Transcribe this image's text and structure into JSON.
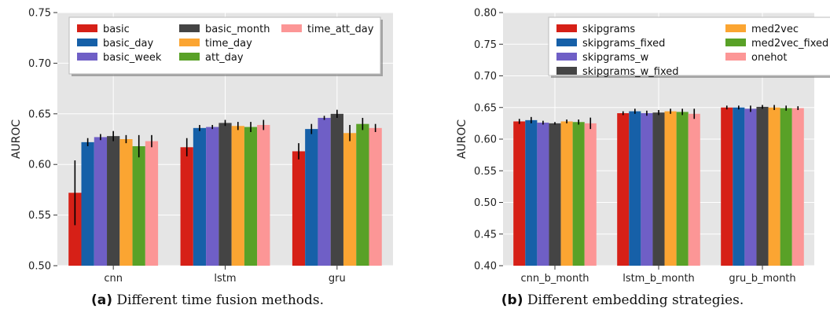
{
  "figure": {
    "caption_a_label": "(a)",
    "caption_a_text": "Different time fusion methods.",
    "caption_b_label": "(b)",
    "caption_b_text": "Different embedding strategies."
  },
  "colors": {
    "plot_bg": "#e5e5e5",
    "grid": "#ffffff"
  },
  "chart_data": [
    {
      "type": "bar",
      "title": "",
      "xlabel": "",
      "ylabel": "AUROC",
      "ylim": [
        0.5,
        0.75
      ],
      "yticks": [
        "0.50",
        "0.55",
        "0.60",
        "0.65",
        "0.70",
        "0.75"
      ],
      "grid": true,
      "legend": "top-left",
      "legend_columns": 3,
      "categories": [
        "cnn",
        "lstm",
        "gru"
      ],
      "series": [
        {
          "name": "basic",
          "color": "#d62017",
          "values": [
            0.572,
            0.617,
            0.613
          ],
          "errors": [
            0.032,
            0.009,
            0.008
          ]
        },
        {
          "name": "basic_day",
          "color": "#1660a8",
          "values": [
            0.622,
            0.636,
            0.635
          ],
          "errors": [
            0.004,
            0.003,
            0.005
          ]
        },
        {
          "name": "basic_week",
          "color": "#6f5fc6",
          "values": [
            0.627,
            0.637,
            0.646
          ],
          "errors": [
            0.003,
            0.002,
            0.002
          ]
        },
        {
          "name": "basic_month",
          "color": "#444444",
          "values": [
            0.628,
            0.641,
            0.65
          ],
          "errors": [
            0.005,
            0.003,
            0.004
          ]
        },
        {
          "name": "time_day",
          "color": "#fba532",
          "values": [
            0.625,
            0.638,
            0.631
          ],
          "errors": [
            0.004,
            0.004,
            0.008
          ]
        },
        {
          "name": "att_day",
          "color": "#59a127",
          "values": [
            0.618,
            0.637,
            0.64
          ],
          "errors": [
            0.011,
            0.005,
            0.006
          ]
        },
        {
          "name": "time_att_day",
          "color": "#fc9696",
          "values": [
            0.623,
            0.639,
            0.636
          ],
          "errors": [
            0.006,
            0.005,
            0.004
          ]
        }
      ]
    },
    {
      "type": "bar",
      "title": "",
      "xlabel": "",
      "ylabel": "AUROC",
      "ylim": [
        0.4,
        0.8
      ],
      "yticks": [
        "0.40",
        "0.45",
        "0.50",
        "0.55",
        "0.60",
        "0.65",
        "0.70",
        "0.75",
        "0.80"
      ],
      "grid": true,
      "legend": "top-center",
      "legend_columns": 2,
      "categories": [
        "cnn_b_month",
        "lstm_b_month",
        "gru_b_month"
      ],
      "series": [
        {
          "name": "skipgrams",
          "color": "#d62017",
          "values": [
            0.628,
            0.641,
            0.65
          ],
          "errors": [
            0.004,
            0.003,
            0.003
          ]
        },
        {
          "name": "skipgrams_fixed",
          "color": "#1660a8",
          "values": [
            0.63,
            0.644,
            0.65
          ],
          "errors": [
            0.005,
            0.004,
            0.003
          ]
        },
        {
          "name": "skipgrams_w",
          "color": "#6f5fc6",
          "values": [
            0.626,
            0.641,
            0.648
          ],
          "errors": [
            0.003,
            0.004,
            0.005
          ]
        },
        {
          "name": "skipgrams_w_fixed",
          "color": "#444444",
          "values": [
            0.625,
            0.642,
            0.651
          ],
          "errors": [
            0.002,
            0.004,
            0.003
          ]
        },
        {
          "name": "med2vec",
          "color": "#fba532",
          "values": [
            0.628,
            0.644,
            0.65
          ],
          "errors": [
            0.003,
            0.004,
            0.004
          ]
        },
        {
          "name": "med2vec_fixed",
          "color": "#59a127",
          "values": [
            0.627,
            0.643,
            0.649
          ],
          "errors": [
            0.004,
            0.005,
            0.004
          ]
        },
        {
          "name": "onehot",
          "color": "#fc9696",
          "values": [
            0.625,
            0.64,
            0.649
          ],
          "errors": [
            0.009,
            0.008,
            0.003
          ]
        }
      ]
    }
  ]
}
